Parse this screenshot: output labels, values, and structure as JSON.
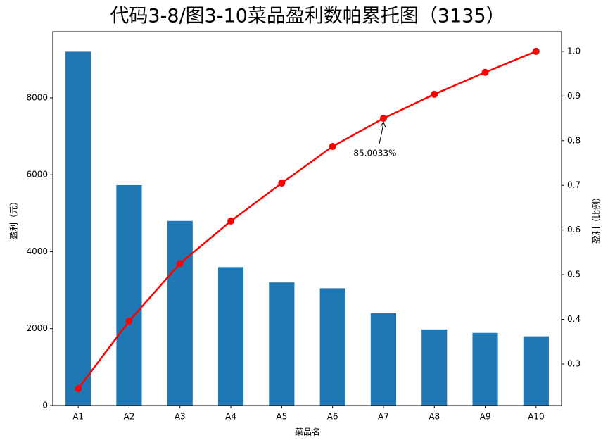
{
  "chart_data": {
    "type": "pareto",
    "title": "代码3-8/图3-10菜品盈利数帕累托图（3135）",
    "xlabel": "菜品名",
    "ylabel": "盈利（元）",
    "y2label": "盈利（比例）",
    "categories": [
      "A1",
      "A2",
      "A3",
      "A4",
      "A5",
      "A6",
      "A7",
      "A8",
      "A9",
      "A10"
    ],
    "series": [
      {
        "type": "bar",
        "color": "#1f77b4",
        "values": [
          9200,
          5730,
          4800,
          3600,
          3200,
          3050,
          2400,
          1980,
          1890,
          1800
        ]
      },
      {
        "type": "line",
        "color": "#ff0000",
        "axis": "y2",
        "values": [
          0.245,
          0.396,
          0.525,
          0.62,
          0.705,
          0.787,
          0.85,
          0.904,
          0.953,
          1.0
        ]
      }
    ],
    "ylim": [
      0,
      9720
    ],
    "yticks": [
      0,
      2000,
      4000,
      6000,
      8000
    ],
    "y2lim": [
      0.207,
      1.044
    ],
    "y2ticks": [
      0.3,
      0.4,
      0.5,
      0.6,
      0.7,
      0.8,
      0.9,
      {
        "value": 1.0,
        "label": "1.0"
      }
    ],
    "annotation": {
      "text": "85.0033%",
      "category": "A7"
    }
  }
}
